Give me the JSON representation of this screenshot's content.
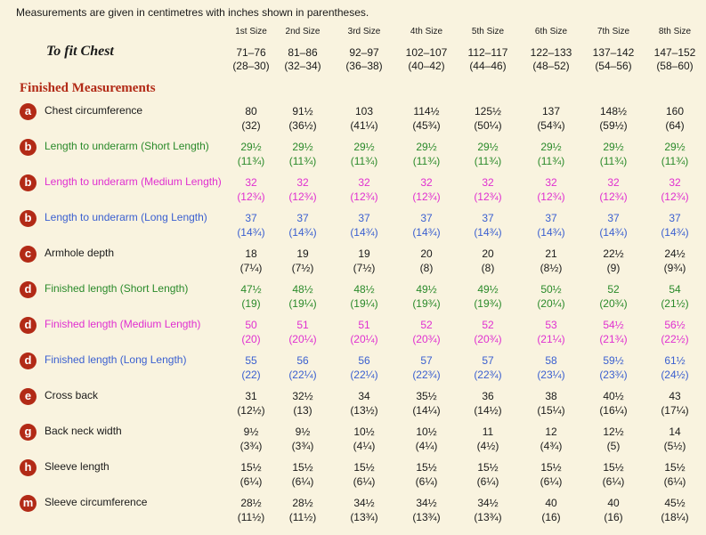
{
  "intro": "Measurements are given in centimetres with inches shown in parentheses.",
  "sizes": [
    "1st Size",
    "2nd Size",
    "3rd Size",
    "4th Size",
    "5th Size",
    "6th Size",
    "7th Size",
    "8th Size"
  ],
  "to_fit_label": "To fit Chest",
  "to_fit": [
    [
      "71–76",
      "(28–30)"
    ],
    [
      "81–86",
      "(32–34)"
    ],
    [
      "92–97",
      "(36–38)"
    ],
    [
      "102–107",
      "(40–42)"
    ],
    [
      "112–117",
      "(44–46)"
    ],
    [
      "122–133",
      "(48–52)"
    ],
    [
      "137–142",
      "(54–56)"
    ],
    [
      "147–152",
      "(58–60)"
    ]
  ],
  "section_title": "Finished Measurements",
  "colors": {
    "black": "#1a1a1a",
    "green": "#2a8a2a",
    "magenta": "#e02fd0",
    "blue": "#3a5fd0",
    "badge": "#b22a16"
  },
  "rows": [
    {
      "badge": "a",
      "label": "Chest circumference",
      "color": "black",
      "values": [
        [
          "80",
          "(32)"
        ],
        [
          "91½",
          "(36½)"
        ],
        [
          "103",
          "(41¼)"
        ],
        [
          "114½",
          "(45¾)"
        ],
        [
          "125½",
          "(50¼)"
        ],
        [
          "137",
          "(54¾)"
        ],
        [
          "148½",
          "(59½)"
        ],
        [
          "160",
          "(64)"
        ]
      ]
    },
    {
      "badge": "b",
      "label": "Length to underarm (Short Length)",
      "color": "green",
      "values": [
        [
          "29½",
          "(11¾)"
        ],
        [
          "29½",
          "(11¾)"
        ],
        [
          "29½",
          "(11¾)"
        ],
        [
          "29½",
          "(11¾)"
        ],
        [
          "29½",
          "(11¾)"
        ],
        [
          "29½",
          "(11¾)"
        ],
        [
          "29½",
          "(11¾)"
        ],
        [
          "29½",
          "(11¾)"
        ]
      ]
    },
    {
      "badge": "b",
      "label": "Length to underarm (Medium Length)",
      "color": "magenta",
      "values": [
        [
          "32",
          "(12¾)"
        ],
        [
          "32",
          "(12¾)"
        ],
        [
          "32",
          "(12¾)"
        ],
        [
          "32",
          "(12¾)"
        ],
        [
          "32",
          "(12¾)"
        ],
        [
          "32",
          "(12¾)"
        ],
        [
          "32",
          "(12¾)"
        ],
        [
          "32",
          "(12¾)"
        ]
      ]
    },
    {
      "badge": "b",
      "label": "Length to underarm (Long Length)",
      "color": "blue",
      "values": [
        [
          "37",
          "(14¾)"
        ],
        [
          "37",
          "(14¾)"
        ],
        [
          "37",
          "(14¾)"
        ],
        [
          "37",
          "(14¾)"
        ],
        [
          "37",
          "(14¾)"
        ],
        [
          "37",
          "(14¾)"
        ],
        [
          "37",
          "(14¾)"
        ],
        [
          "37",
          "(14¾)"
        ]
      ]
    },
    {
      "badge": "c",
      "label": "Armhole depth",
      "color": "black",
      "values": [
        [
          "18",
          "(7¼)"
        ],
        [
          "19",
          "(7½)"
        ],
        [
          "19",
          "(7½)"
        ],
        [
          "20",
          "(8)"
        ],
        [
          "20",
          "(8)"
        ],
        [
          "21",
          "(8½)"
        ],
        [
          "22½",
          "(9)"
        ],
        [
          "24½",
          "(9¾)"
        ]
      ]
    },
    {
      "badge": "d",
      "label": "Finished length (Short Length)",
      "color": "green",
      "values": [
        [
          "47½",
          "(19)"
        ],
        [
          "48½",
          "(19¼)"
        ],
        [
          "48½",
          "(19¼)"
        ],
        [
          "49½",
          "(19¾)"
        ],
        [
          "49½",
          "(19¾)"
        ],
        [
          "50½",
          "(20¼)"
        ],
        [
          "52",
          "(20¾)"
        ],
        [
          "54",
          "(21½)"
        ]
      ]
    },
    {
      "badge": "d",
      "label": "Finished length (Medium Length)",
      "color": "magenta",
      "values": [
        [
          "50",
          "(20)"
        ],
        [
          "51",
          "(20¼)"
        ],
        [
          "51",
          "(20¼)"
        ],
        [
          "52",
          "(20¾)"
        ],
        [
          "52",
          "(20¾)"
        ],
        [
          "53",
          "(21¼)"
        ],
        [
          "54½",
          "(21¾)"
        ],
        [
          "56½",
          "(22½)"
        ]
      ]
    },
    {
      "badge": "d",
      "label": "Finished length (Long Length)",
      "color": "blue",
      "values": [
        [
          "55",
          "(22)"
        ],
        [
          "56",
          "(22¼)"
        ],
        [
          "56",
          "(22¼)"
        ],
        [
          "57",
          "(22¾)"
        ],
        [
          "57",
          "(22¾)"
        ],
        [
          "58",
          "(23¼)"
        ],
        [
          "59½",
          "(23¾)"
        ],
        [
          "61½",
          "(24½)"
        ]
      ]
    },
    {
      "badge": "e",
      "label": "Cross back",
      "color": "black",
      "values": [
        [
          "31",
          "(12½)"
        ],
        [
          "32½",
          "(13)"
        ],
        [
          "34",
          "(13½)"
        ],
        [
          "35½",
          "(14¼)"
        ],
        [
          "36",
          "(14½)"
        ],
        [
          "38",
          "(15¼)"
        ],
        [
          "40½",
          "(16¼)"
        ],
        [
          "43",
          "(17¼)"
        ]
      ]
    },
    {
      "badge": "g",
      "label": "Back neck width",
      "color": "black",
      "values": [
        [
          "9½",
          "(3¾)"
        ],
        [
          "9½",
          "(3¾)"
        ],
        [
          "10½",
          "(4¼)"
        ],
        [
          "10½",
          "(4¼)"
        ],
        [
          "11",
          "(4½)"
        ],
        [
          "12",
          "(4¾)"
        ],
        [
          "12½",
          "(5)"
        ],
        [
          "14",
          "(5½)"
        ]
      ]
    },
    {
      "badge": "h",
      "label": "Sleeve length",
      "color": "black",
      "values": [
        [
          "15½",
          "(6¼)"
        ],
        [
          "15½",
          "(6¼)"
        ],
        [
          "15½",
          "(6¼)"
        ],
        [
          "15½",
          "(6¼)"
        ],
        [
          "15½",
          "(6¼)"
        ],
        [
          "15½",
          "(6¼)"
        ],
        [
          "15½",
          "(6¼)"
        ],
        [
          "15½",
          "(6¼)"
        ]
      ]
    },
    {
      "badge": "m",
      "label": "Sleeve circumference",
      "color": "black",
      "values": [
        [
          "28½",
          "(11½)"
        ],
        [
          "28½",
          "(11½)"
        ],
        [
          "34½",
          "(13¾)"
        ],
        [
          "34½",
          "(13¾)"
        ],
        [
          "34½",
          "(13¾)"
        ],
        [
          "40",
          "(16)"
        ],
        [
          "40",
          "(16)"
        ],
        [
          "45½",
          "(18¼)"
        ]
      ]
    }
  ]
}
